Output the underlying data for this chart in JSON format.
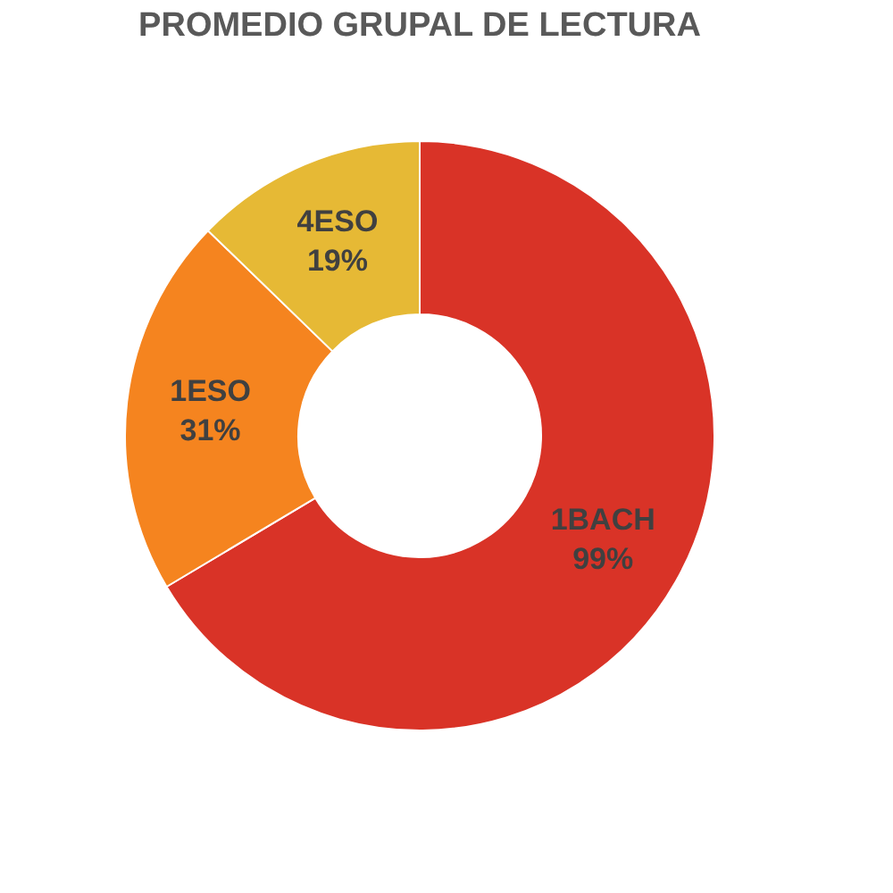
{
  "chart_data": {
    "type": "donut",
    "title": "PROMEDIO GRUPAL DE LECTURA",
    "categories": [
      "1BACH",
      "1ESO",
      "4ESO"
    ],
    "values": [
      99,
      31,
      19
    ],
    "value_labels": [
      "99%",
      "31%",
      "19%"
    ],
    "colors": [
      "#d93327",
      "#f5841f",
      "#e6b935"
    ],
    "legend": false
  }
}
